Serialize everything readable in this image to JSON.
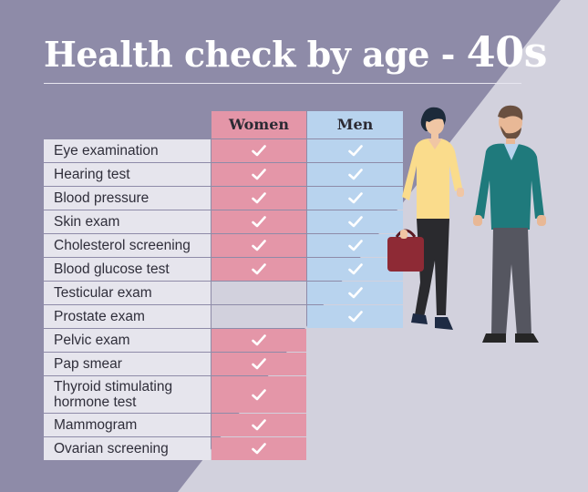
{
  "title": {
    "main": "Health check by age - ",
    "decade": "40s"
  },
  "columns": {
    "women": "Women",
    "men": "Men"
  },
  "colors": {
    "women": "#e496a8",
    "men": "#b8d3ee",
    "background": "#8e8ba8",
    "label_bg": "#e6e5ed"
  },
  "rows": [
    {
      "label": "Eye examination",
      "women": true,
      "men": true
    },
    {
      "label": "Hearing test",
      "women": true,
      "men": true
    },
    {
      "label": "Blood pressure",
      "women": true,
      "men": true
    },
    {
      "label": "Skin exam",
      "women": true,
      "men": true
    },
    {
      "label": "Cholesterol screening",
      "women": true,
      "men": true
    },
    {
      "label": "Blood glucose test",
      "women": true,
      "men": true
    },
    {
      "label": "Testicular exam",
      "women": false,
      "men": true
    },
    {
      "label": "Prostate exam",
      "women": false,
      "men": true
    },
    {
      "label": "Pelvic exam",
      "women": true,
      "men": false
    },
    {
      "label": "Pap smear",
      "women": true,
      "men": false
    },
    {
      "label": "Thyroid stimulating hormone test",
      "women": true,
      "men": false
    },
    {
      "label": "Mammogram",
      "women": true,
      "men": false
    },
    {
      "label": "Ovarian screening",
      "women": true,
      "men": false
    }
  ],
  "illustration": {
    "icon": "man-and-woman-illustration"
  }
}
